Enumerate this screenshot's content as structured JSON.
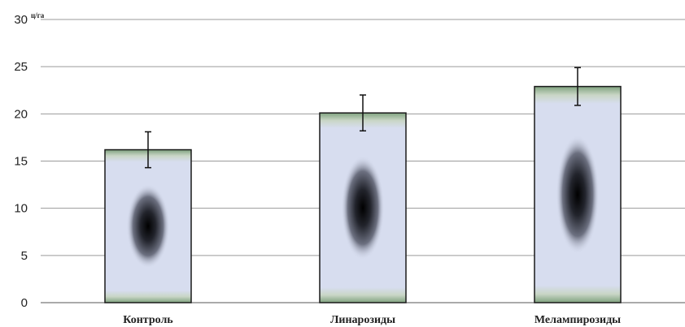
{
  "chart_data": {
    "type": "bar",
    "categories": [
      "Контроль",
      "Линарозиды",
      "Мелампирозиды"
    ],
    "values": [
      16.2,
      20.1,
      22.9
    ],
    "error": [
      1.9,
      1.9,
      2.0
    ],
    "ylabel": "ц/га",
    "ylim": [
      0,
      30
    ],
    "yticks": [
      "0",
      "5",
      "10",
      "15",
      "20",
      "25",
      "30"
    ],
    "grid": true,
    "legend": "none"
  }
}
